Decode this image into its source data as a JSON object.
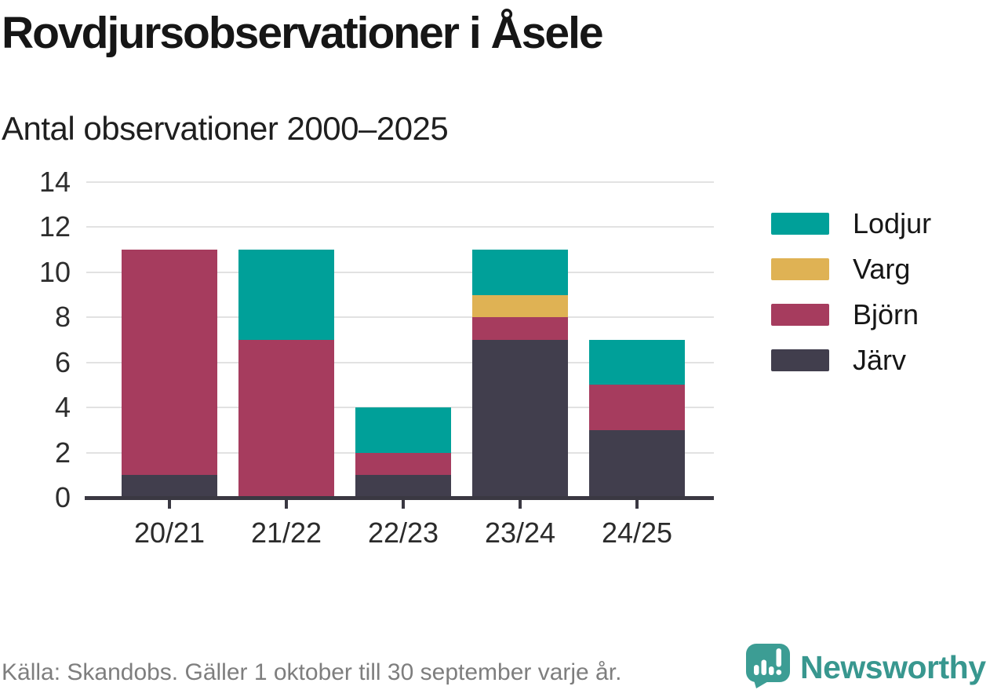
{
  "header": {
    "title": "Rovdjursobservationer i Åsele",
    "subtitle": "Antal observationer 2000–2025"
  },
  "chart_data": {
    "type": "bar",
    "stacked": true,
    "title": "Rovdjursobservationer i Åsele",
    "subtitle": "Antal observationer 2000–2025",
    "categories": [
      "20/21",
      "21/22",
      "22/23",
      "23/24",
      "24/25"
    ],
    "series": [
      {
        "name": "Järv",
        "color": "#413E4D",
        "values": [
          1,
          0,
          1,
          7,
          3
        ]
      },
      {
        "name": "Björn",
        "color": "#A63C5E",
        "values": [
          10,
          7,
          1,
          1,
          2
        ]
      },
      {
        "name": "Varg",
        "color": "#DFB254",
        "values": [
          0,
          0,
          0,
          1,
          0
        ]
      },
      {
        "name": "Lodjur",
        "color": "#00A099",
        "values": [
          0,
          4,
          2,
          2,
          2
        ]
      }
    ],
    "totals": [
      11,
      11,
      4,
      11,
      7
    ],
    "ylim": [
      0,
      14
    ],
    "yticks": [
      0,
      2,
      4,
      6,
      8,
      10,
      12,
      14
    ],
    "xlabel": "",
    "ylabel": "",
    "grid": "horizontal",
    "legend_position": "right",
    "legend_order": [
      "Lodjur",
      "Varg",
      "Björn",
      "Järv"
    ]
  },
  "footer": {
    "source": "Källa: Skandobs. Gäller 1 oktober till 30 september varje år.",
    "brand": "Newsworthy"
  },
  "colors": {
    "lodjur": "#00A099",
    "varg": "#DFB254",
    "bjorn": "#A63C5E",
    "jarv": "#413E4D",
    "brand_teal": "#3C9D94",
    "brand_text": "#38978F",
    "axis": "#3A3842",
    "grid": "#E2E2E2",
    "title_text": "#161616",
    "muted_text": "#7E7E7E"
  }
}
